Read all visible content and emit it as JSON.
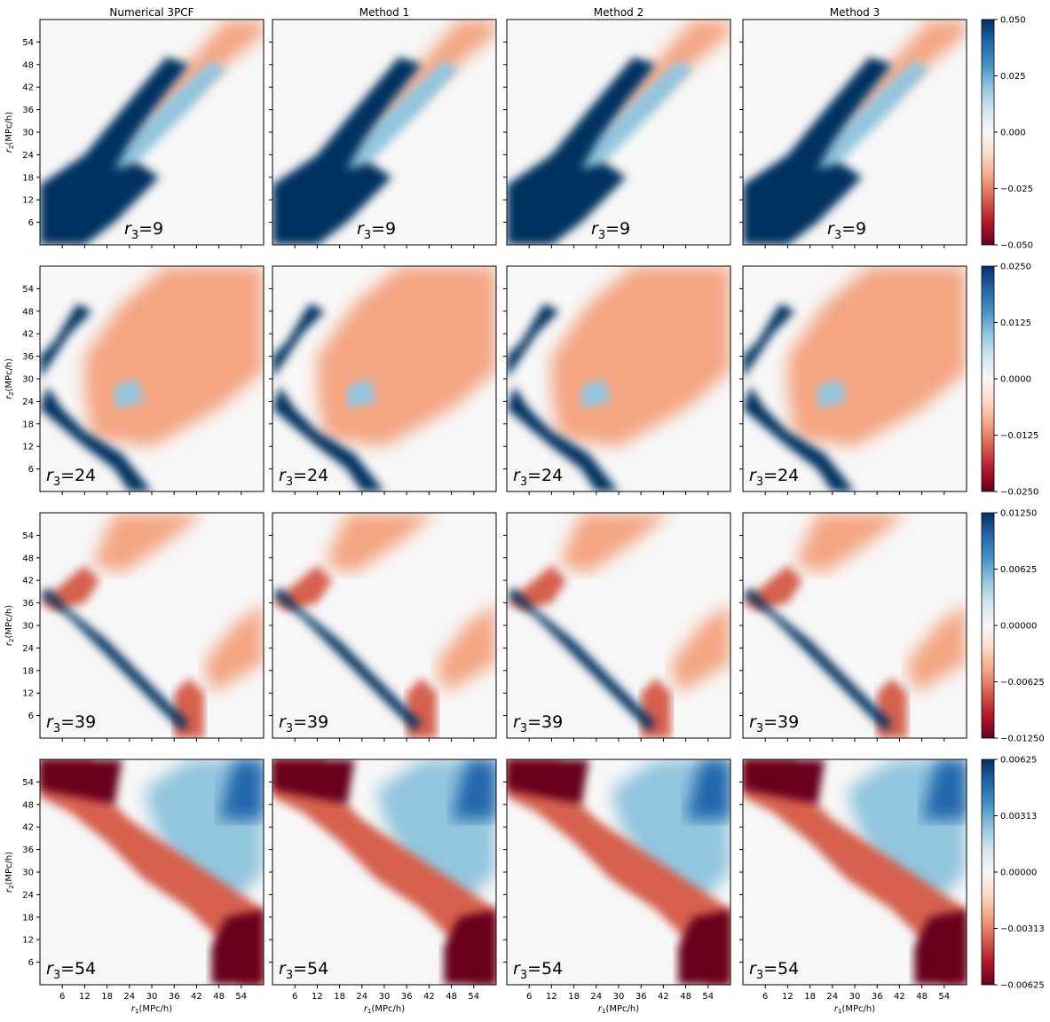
{
  "columns": [
    "Numerical 3PCF",
    "Method 1",
    "Method 2",
    "Method 3"
  ],
  "chart_data": {
    "type": "heatmap",
    "xlabel": "$r_1$(MPc/h)",
    "ylabel": "$r_2$(MPc/h)",
    "x_ticks": [
      6,
      12,
      18,
      24,
      30,
      36,
      42,
      48,
      54
    ],
    "y_ticks": [
      6,
      12,
      18,
      24,
      30,
      36,
      42,
      48,
      54
    ],
    "axis_range": [
      0,
      60
    ],
    "colormap": "RdBu",
    "rows": [
      {
        "r3": "9",
        "panel_label": "r3=9",
        "vmin": -0.05,
        "vmax": 0.05,
        "colorbar_ticks": [
          "0.050",
          "0.025",
          "0.000",
          "−0.025",
          "−0.050"
        ]
      },
      {
        "r3": "24",
        "panel_label": "r3=24",
        "vmin": -0.025,
        "vmax": 0.025,
        "colorbar_ticks": [
          "0.0250",
          "0.0125",
          "0.0000",
          "−0.0125",
          "−0.0250"
        ]
      },
      {
        "r3": "39",
        "panel_label": "r3=39",
        "vmin": -0.0125,
        "vmax": 0.0125,
        "colorbar_ticks": [
          "0.01250",
          "0.00625",
          "0.00000",
          "−0.00625",
          "−0.01250"
        ]
      },
      {
        "r3": "54",
        "panel_label": "r3=54",
        "vmin": -0.00625,
        "vmax": 0.00625,
        "colorbar_ticks": [
          "0.00625",
          "0.00313",
          "0.00000",
          "−0.00313",
          "−0.00625"
        ]
      }
    ]
  },
  "labels": {
    "r3_symbol": "r",
    "r3_sub": "3",
    "r1_symbol": "r",
    "r1_sub": "1",
    "r2_symbol": "r",
    "r2_sub": "2",
    "unit": "(MPc/h)"
  },
  "colors": {
    "strong_blue": "#053061",
    "mid_blue": "#2166ac",
    "light_blue": "#92c5de",
    "neutral": "#f7f7f7",
    "light_red": "#f4a582",
    "mid_red": "#d6604d",
    "strong_red": "#67001f"
  }
}
